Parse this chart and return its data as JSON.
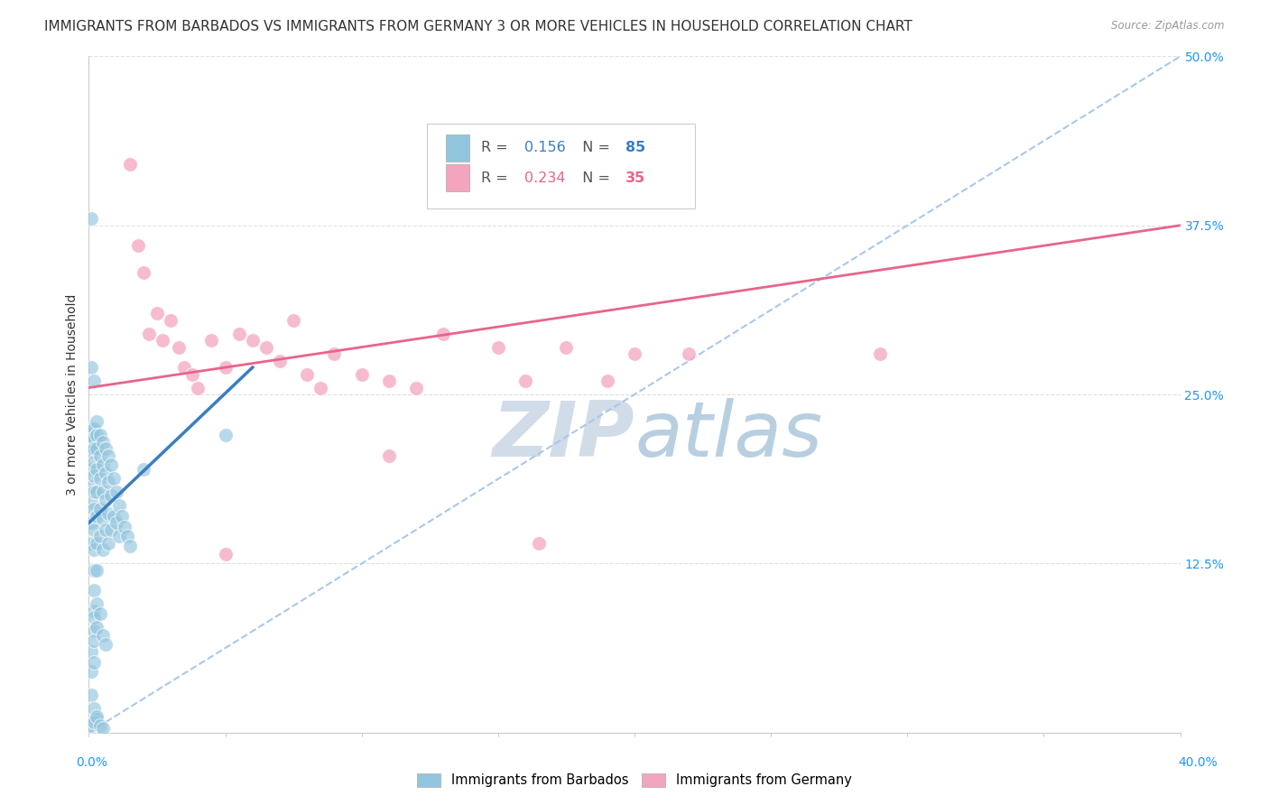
{
  "title": "IMMIGRANTS FROM BARBADOS VS IMMIGRANTS FROM GERMANY 3 OR MORE VEHICLES IN HOUSEHOLD CORRELATION CHART",
  "source": "Source: ZipAtlas.com",
  "ylabel": "3 or more Vehicles in Household",
  "barbados_R": 0.156,
  "barbados_N": 85,
  "germany_R": 0.234,
  "germany_N": 35,
  "barbados_color": "#92c5de",
  "germany_color": "#f4a5be",
  "barbados_line_color": "#3a7ebf",
  "germany_line_color": "#e8658a",
  "diag_color": "#aac8e8",
  "watermark_color": "#d0dce8",
  "watermark_text": "ZIPatlas",
  "xlim": [
    0.0,
    0.4
  ],
  "ylim": [
    0.0,
    0.5
  ],
  "ytick_vals": [
    0.0,
    0.125,
    0.25,
    0.375,
    0.5
  ],
  "ytick_labels": [
    "",
    "12.5%",
    "25.0%",
    "37.5%",
    "50.0%"
  ],
  "grid_color": "#e0e0e0",
  "bg_color": "#ffffff",
  "title_fontsize": 11,
  "tick_fontsize": 10,
  "ylabel_fontsize": 10,
  "barbados_x": [
    0.001,
    0.001,
    0.001,
    0.001,
    0.001,
    0.001,
    0.001,
    0.001,
    0.001,
    0.001,
    0.002,
    0.002,
    0.002,
    0.002,
    0.002,
    0.002,
    0.002,
    0.002,
    0.002,
    0.002,
    0.002,
    0.002,
    0.002,
    0.003,
    0.003,
    0.003,
    0.003,
    0.003,
    0.003,
    0.003,
    0.003,
    0.004,
    0.004,
    0.004,
    0.004,
    0.004,
    0.005,
    0.005,
    0.005,
    0.005,
    0.005,
    0.006,
    0.006,
    0.006,
    0.006,
    0.007,
    0.007,
    0.007,
    0.007,
    0.008,
    0.008,
    0.008,
    0.009,
    0.009,
    0.01,
    0.01,
    0.011,
    0.011,
    0.012,
    0.013,
    0.014,
    0.015,
    0.001,
    0.001,
    0.002,
    0.002,
    0.002,
    0.003,
    0.003,
    0.004,
    0.005,
    0.006,
    0.001,
    0.001,
    0.002,
    0.05,
    0.001,
    0.002,
    0.003,
    0.02,
    0.001,
    0.002,
    0.003,
    0.004,
    0.005
  ],
  "barbados_y": [
    0.21,
    0.218,
    0.225,
    0.215,
    0.208,
    0.195,
    0.182,
    0.17,
    0.155,
    0.14,
    0.225,
    0.218,
    0.21,
    0.2,
    0.19,
    0.178,
    0.165,
    0.15,
    0.135,
    0.12,
    0.105,
    0.09,
    0.075,
    0.23,
    0.22,
    0.21,
    0.195,
    0.178,
    0.16,
    0.14,
    0.12,
    0.22,
    0.205,
    0.188,
    0.165,
    0.145,
    0.215,
    0.198,
    0.178,
    0.158,
    0.135,
    0.21,
    0.192,
    0.172,
    0.15,
    0.205,
    0.185,
    0.162,
    0.14,
    0.198,
    0.175,
    0.15,
    0.188,
    0.16,
    0.178,
    0.155,
    0.168,
    0.145,
    0.16,
    0.152,
    0.145,
    0.138,
    0.06,
    0.045,
    0.085,
    0.068,
    0.052,
    0.095,
    0.078,
    0.088,
    0.072,
    0.065,
    0.38,
    0.27,
    0.26,
    0.22,
    0.028,
    0.018,
    0.01,
    0.195,
    0.005,
    0.008,
    0.012,
    0.005,
    0.003
  ],
  "germany_x": [
    0.015,
    0.018,
    0.02,
    0.022,
    0.025,
    0.027,
    0.03,
    0.033,
    0.035,
    0.038,
    0.04,
    0.045,
    0.05,
    0.055,
    0.06,
    0.065,
    0.07,
    0.075,
    0.08,
    0.085,
    0.09,
    0.1,
    0.11,
    0.12,
    0.13,
    0.15,
    0.16,
    0.175,
    0.19,
    0.2,
    0.22,
    0.29,
    0.05,
    0.11,
    0.165
  ],
  "germany_y": [
    0.42,
    0.36,
    0.34,
    0.295,
    0.31,
    0.29,
    0.305,
    0.285,
    0.27,
    0.265,
    0.255,
    0.29,
    0.27,
    0.295,
    0.29,
    0.285,
    0.275,
    0.305,
    0.265,
    0.255,
    0.28,
    0.265,
    0.26,
    0.255,
    0.295,
    0.285,
    0.26,
    0.285,
    0.26,
    0.28,
    0.28,
    0.28,
    0.132,
    0.205,
    0.14
  ],
  "barbados_line_x": [
    0.0,
    0.06
  ],
  "barbados_line_y_start": 0.155,
  "barbados_line_y_end": 0.27,
  "germany_line_x": [
    0.0,
    0.4
  ],
  "germany_line_y_start": 0.255,
  "germany_line_y_end": 0.375
}
